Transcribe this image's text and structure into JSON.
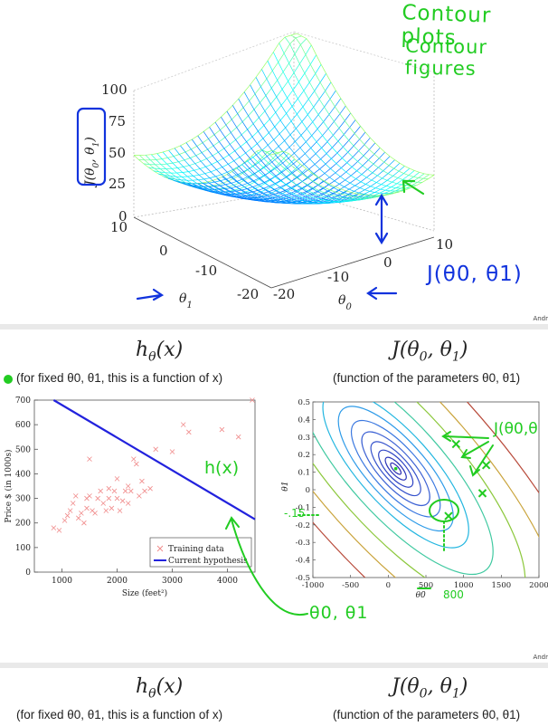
{
  "slide1": {
    "annotations": {
      "line1": "Contour plots",
      "line2": "Contour figures",
      "boxed_label": "J(θ0,θ1)",
      "cost_label": "J(θ0, θ1)"
    },
    "axes": {
      "z_ticks": [
        "100",
        "75",
        "50",
        "25",
        "0"
      ],
      "theta1_ticks": [
        "10",
        "0",
        "-10",
        "-20"
      ],
      "theta0_ticks": [
        "10",
        "0",
        "-10",
        "-20"
      ],
      "theta1_label": "θ1",
      "theta0_label": "θ0",
      "z_label": "J(θ0, θ1)"
    },
    "credit": "Andr"
  },
  "slide2": {
    "left_title": "hθ(x)",
    "left_caption": "(for fixed θ0, θ1, this is a function of x)",
    "right_title": "J(θ0, θ1)",
    "right_caption": "(function of the parameters θ0, θ1)",
    "credit": "Andr",
    "annotations": {
      "hx": "h(x)",
      "theta_pair": "θ0, θ1",
      "j_pair": "J(θ0,θ",
      "neg_label": "-.15",
      "eight_hundred": "800"
    }
  },
  "slide3": {
    "left_title": "hθ(x)",
    "left_caption": "(for fixed θ0, θ1, this is a function of x)",
    "right_title": "J(θ0, θ1)",
    "right_caption": "(function of the parameters θ0, θ1)"
  },
  "chart_data": [
    {
      "type": "scatter",
      "title": "",
      "xlabel": "Size (feet²)",
      "ylabel": "Price $ (in 1000s)",
      "xlim": [
        500,
        4500
      ],
      "ylim": [
        0,
        700
      ],
      "x_ticks": [
        "1000",
        "2000",
        "3000",
        "4000"
      ],
      "y_ticks": [
        "0",
        "100",
        "200",
        "300",
        "400",
        "500",
        "600",
        "700"
      ],
      "legend": [
        "Training data",
        "Current hypothesis"
      ],
      "legend_position": "bottom-right",
      "series": [
        {
          "name": "Training data",
          "points": [
            [
              850,
              180
            ],
            [
              950,
              170
            ],
            [
              1050,
              210
            ],
            [
              1100,
              230
            ],
            [
              1150,
              250
            ],
            [
              1200,
              280
            ],
            [
              1250,
              310
            ],
            [
              1300,
              220
            ],
            [
              1350,
              240
            ],
            [
              1400,
              200
            ],
            [
              1450,
              260
            ],
            [
              1450,
              300
            ],
            [
              1500,
              310
            ],
            [
              1500,
              460
            ],
            [
              1550,
              250
            ],
            [
              1600,
              240
            ],
            [
              1650,
              300
            ],
            [
              1700,
              330
            ],
            [
              1750,
              280
            ],
            [
              1800,
              250
            ],
            [
              1850,
              340
            ],
            [
              1850,
              300
            ],
            [
              1900,
              260
            ],
            [
              1950,
              330
            ],
            [
              2000,
              300
            ],
            [
              2000,
              380
            ],
            [
              2050,
              250
            ],
            [
              2100,
              290
            ],
            [
              2150,
              330
            ],
            [
              2200,
              350
            ],
            [
              2200,
              280
            ],
            [
              2250,
              330
            ],
            [
              2300,
              460
            ],
            [
              2350,
              440
            ],
            [
              2400,
              310
            ],
            [
              2450,
              370
            ],
            [
              2500,
              330
            ],
            [
              2600,
              340
            ],
            [
              2700,
              500
            ],
            [
              3000,
              490
            ],
            [
              3200,
              600
            ],
            [
              3300,
              570
            ],
            [
              3900,
              580
            ],
            [
              4200,
              550
            ],
            [
              4450,
              700
            ]
          ]
        },
        {
          "name": "Current hypothesis",
          "line": [
            [
              850,
              700
            ],
            [
              4500,
              215
            ]
          ]
        }
      ]
    },
    {
      "type": "contour",
      "title": "",
      "xlabel": "θ0",
      "ylabel": "θ1",
      "xlim": [
        -1000,
        2000
      ],
      "ylim": [
        -0.5,
        0.5
      ],
      "x_ticks": [
        "-1000",
        "-500",
        "0",
        "500",
        "1000",
        "1500",
        "2000"
      ],
      "y_ticks": [
        "0.5",
        "0.4",
        "0.3",
        "0.2",
        "0.1",
        "0",
        "-0.1",
        "-0.2",
        "-0.3",
        "-0.4",
        "-0.5"
      ],
      "minimum": [
        100,
        0.12
      ],
      "marked_points": [
        [
          800,
          -0.15
        ],
        [
          900,
          0.26
        ],
        [
          1300,
          0.14
        ],
        [
          1250,
          -0.02
        ]
      ]
    }
  ]
}
